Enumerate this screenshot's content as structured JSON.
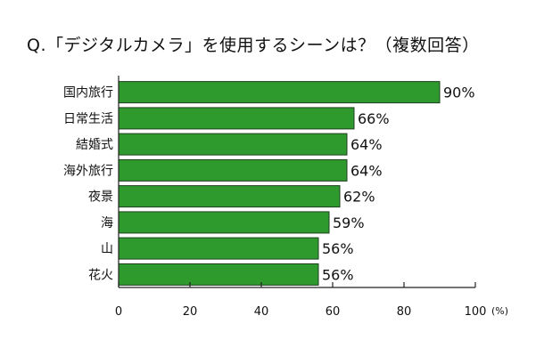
{
  "chart_data": {
    "type": "bar",
    "orientation": "horizontal",
    "title": "Q.「デジタルカメラ」を使用するシーンは？（複数回答）",
    "categories": [
      "国内旅行",
      "日常生活",
      "結婚式",
      "海外旅行",
      "夜景",
      "海",
      "山",
      "花火"
    ],
    "values": [
      90,
      66,
      64,
      64,
      62,
      59,
      56,
      56
    ],
    "value_labels": [
      "90%",
      "66%",
      "64%",
      "64%",
      "62%",
      "59%",
      "56%",
      "56%"
    ],
    "xlim": [
      0,
      100
    ],
    "xticks": [
      0,
      20,
      40,
      60,
      80,
      100
    ],
    "xtick_labels": [
      "0",
      "20",
      "40",
      "60",
      "80",
      "100"
    ],
    "unit": "(%)",
    "grid": false,
    "colors": {
      "bar_fill": "#2e9a2e",
      "bar_stroke": "#1f3f1f",
      "axis": "#222222"
    }
  }
}
